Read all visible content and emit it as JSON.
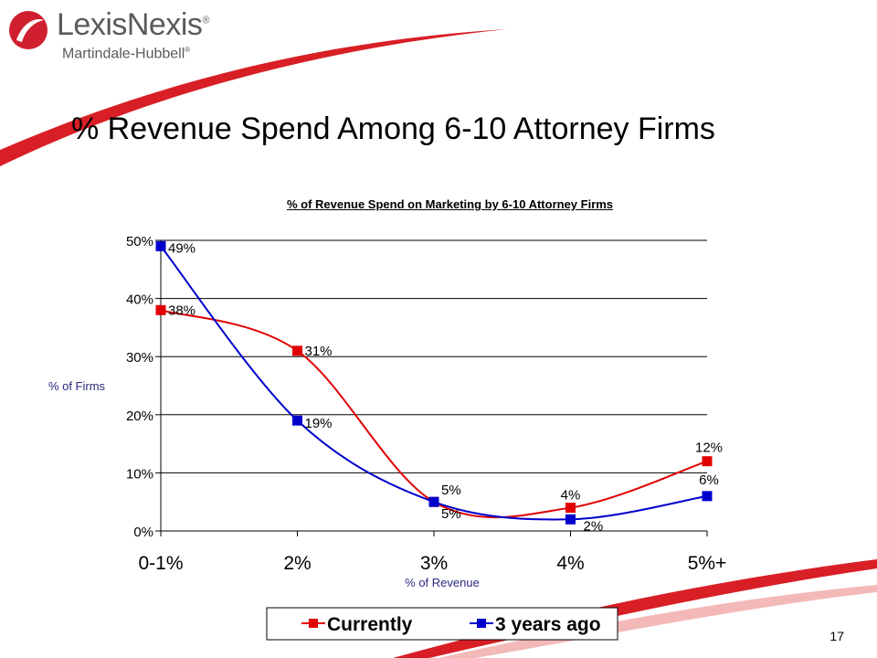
{
  "brand": {
    "name": "LexisNexis",
    "sub": "Martindale-Hubbell",
    "reg": "®",
    "logo_color": "#d0202f",
    "swoosh_color": "#d81f26"
  },
  "slide": {
    "title": "% Revenue Spend Among 6-10 Attorney Firms",
    "page_number": "17"
  },
  "chart_data": {
    "type": "line",
    "title": "% of Revenue Spend on Marketing by 6-10 Attorney Firms",
    "xlabel": "% of Revenue",
    "ylabel": "% of Firms",
    "categories": [
      "0-1%",
      "2%",
      "3%",
      "4%",
      "5%+"
    ],
    "ylim": [
      0,
      50
    ],
    "yticks": [
      0,
      10,
      20,
      30,
      40,
      50
    ],
    "ytick_labels": [
      "0%",
      "10%",
      "20%",
      "30%",
      "40%",
      "50%"
    ],
    "grid": true,
    "legend_position": "bottom",
    "series": [
      {
        "name": "Currently",
        "color": "#e00000",
        "values": [
          38,
          31,
          5,
          4,
          12
        ],
        "labels": [
          "38%",
          "31%",
          "5%",
          "4%",
          "12%"
        ]
      },
      {
        "name": "3 years ago",
        "color": "#0000cc",
        "values": [
          49,
          19,
          5,
          2,
          6
        ],
        "labels": [
          "49%",
          "19%",
          "5%",
          "2%",
          "6%"
        ]
      }
    ]
  }
}
